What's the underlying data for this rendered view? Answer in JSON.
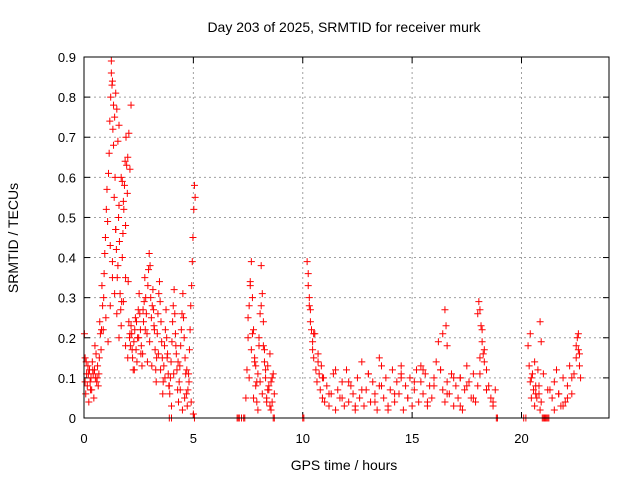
{
  "chart_data": {
    "type": "scatter",
    "title": "Day 203 of 2025, SRMTID for receiver murk",
    "xlabel": "GPS time / hours",
    "ylabel": "SRMTID / TECUs",
    "xlim": [
      0,
      24
    ],
    "ylim": [
      0,
      0.9
    ],
    "xticks": [
      "0",
      "5",
      "10",
      "15",
      "20"
    ],
    "yticks": [
      "0",
      "0.1",
      "0.2",
      "0.3",
      "0.4",
      "0.5",
      "0.6",
      "0.7",
      "0.8",
      "0.9"
    ],
    "grid": true,
    "marker": "+",
    "color": "#ff0000",
    "series": [
      {
        "x": [
          0.02,
          0.05,
          0.08,
          0.12,
          0.15,
          0.18,
          0.22,
          0.25,
          0.28,
          0.32,
          0.35,
          0.38,
          0.42,
          0.45,
          0.48,
          0.52,
          0.55,
          0.58,
          0.62,
          0.65,
          0.68,
          0.72,
          0.75,
          0.78,
          0.82,
          0.85,
          0.88,
          0.92,
          0.95,
          0.98,
          1.02,
          1.05,
          1.08,
          1.12,
          1.15,
          1.18,
          1.22,
          1.25,
          1.28,
          1.32,
          1.35,
          1.38,
          1.42,
          1.45,
          1.48,
          1.52,
          1.55,
          1.58,
          1.62,
          1.65,
          1.68,
          1.72,
          1.75,
          1.78,
          1.82,
          1.85,
          1.88,
          1.92,
          1.95,
          1.98,
          2.02,
          2.05,
          2.08,
          2.12,
          2.15,
          2.18,
          2.22,
          2.25,
          2.28,
          2.32,
          2.35,
          2.38,
          2.42,
          2.45,
          2.48,
          2.52,
          2.55,
          2.58,
          2.62,
          2.65,
          2.68,
          2.72,
          2.75,
          2.78,
          2.82,
          2.85,
          2.88,
          2.92,
          2.95,
          2.98,
          3.02,
          3.05,
          3.08,
          3.12,
          3.15,
          3.18,
          3.22,
          3.25,
          3.28,
          3.32,
          3.35,
          3.38,
          3.42,
          3.45,
          3.48,
          3.52,
          3.55,
          3.58,
          3.62,
          3.65,
          3.68,
          3.72,
          3.75,
          3.78,
          3.82,
          3.85,
          3.88,
          3.92,
          3.95,
          3.98,
          4.02,
          4.05,
          4.08,
          4.12,
          4.15,
          4.18,
          4.22,
          4.25,
          4.28,
          4.32,
          4.35,
          4.38,
          4.42,
          4.45,
          4.48,
          4.52,
          4.55,
          4.58,
          4.62,
          4.65,
          4.68,
          4.72,
          4.75,
          4.78,
          4.82,
          4.85,
          4.88,
          4.92,
          4.95,
          4.98,
          5.02,
          5.05,
          5.08,
          0.05,
          0.1,
          0.2,
          0.3,
          0.4,
          0.5,
          0.6,
          0.7,
          0.8,
          0.9,
          1.0,
          1.1,
          1.2,
          1.3,
          1.4,
          1.5,
          1.6,
          1.7,
          1.8,
          1.9,
          2.0,
          2.1,
          2.2,
          2.3,
          2.4,
          2.5,
          2.6,
          2.7,
          2.8,
          2.9,
          3.0,
          3.1,
          3.2,
          3.3,
          3.4,
          3.5,
          3.6,
          3.7,
          3.8,
          3.9,
          4.0,
          4.1,
          4.2,
          4.3,
          4.4,
          4.5,
          4.6,
          4.7,
          4.8,
          4.9,
          5.0,
          1.25,
          1.3,
          1.35,
          1.4,
          1.45,
          1.5,
          1.55,
          1.6,
          1.7,
          1.8,
          1.9,
          2.0,
          2.1,
          1.2,
          1.3,
          1.45,
          1.6,
          1.75,
          1.9,
          2.05,
          2.15,
          7.4,
          7.45,
          7.5,
          7.55,
          7.6,
          7.65,
          7.7,
          7.75,
          7.8,
          7.85,
          7.9,
          7.95,
          8.0,
          8.05,
          8.1,
          8.15,
          8.2,
          8.25,
          8.3,
          8.35,
          8.4,
          8.45,
          8.5,
          8.55,
          8.6,
          8.65,
          8.7,
          7.5,
          7.6,
          7.7,
          7.8,
          7.9,
          8.0,
          8.1,
          8.2,
          8.3,
          8.4,
          8.5,
          8.6,
          7.55,
          7.65,
          7.75,
          7.85,
          7.95,
          8.05,
          8.15,
          8.25,
          8.35,
          8.45,
          8.55,
          10.2,
          10.25,
          10.3,
          10.35,
          10.4,
          10.45,
          10.5,
          10.55,
          10.6,
          10.65,
          10.7,
          10.75,
          10.8,
          10.85,
          10.9,
          10.95,
          11.0,
          11.1,
          11.2,
          11.3,
          11.4,
          11.5,
          11.6,
          11.7,
          11.8,
          11.9,
          12.0,
          12.1,
          12.2,
          12.3,
          12.4,
          12.5,
          12.6,
          12.7,
          12.8,
          12.9,
          13.0,
          13.1,
          13.2,
          13.3,
          13.4,
          13.5,
          13.6,
          13.7,
          13.8,
          13.9,
          14.0,
          14.1,
          14.2,
          14.3,
          14.4,
          14.5,
          14.6,
          14.7,
          14.8,
          14.9,
          15.0,
          15.1,
          15.2,
          15.3,
          15.4,
          15.5,
          15.6,
          15.7,
          15.8,
          15.9,
          16.0,
          16.1,
          16.2,
          16.3,
          16.4,
          16.5,
          16.6,
          16.7,
          16.8,
          16.9,
          17.0,
          17.1,
          17.2,
          17.3,
          17.4,
          17.5,
          17.6,
          17.7,
          17.8,
          17.9,
          18.0,
          18.1,
          18.2,
          18.3,
          18.4,
          18.5,
          18.6,
          18.7,
          18.8,
          10.3,
          10.5,
          10.7,
          10.9,
          11.2,
          11.5,
          11.8,
          12.1,
          12.4,
          12.7,
          13.0,
          13.3,
          13.6,
          13.9,
          14.2,
          14.5,
          14.8,
          15.1,
          15.4,
          15.7,
          16.0,
          16.3,
          16.6,
          16.9,
          17.2,
          17.5,
          17.8,
          18.1,
          18.4,
          18.7,
          10.25,
          10.35,
          10.45,
          13.5,
          14.5,
          15.5,
          16.4,
          16.5,
          16.55,
          16.6,
          17.2,
          18.0,
          18.05,
          18.1,
          18.15,
          18.2,
          18.25,
          18.3,
          18.4,
          20.3,
          20.35,
          20.4,
          20.45,
          20.5,
          20.55,
          20.6,
          20.65,
          20.7,
          20.75,
          20.8,
          20.85,
          20.9,
          21.3,
          21.4,
          21.5,
          21.6,
          21.7,
          21.8,
          21.9,
          22.0,
          22.1,
          22.2,
          22.3,
          22.4,
          22.5,
          22.6,
          22.65,
          22.7,
          20.4,
          20.6,
          20.8,
          21.5,
          21.7,
          21.9,
          22.1,
          22.3,
          22.5,
          20.45,
          20.65,
          20.85,
          20.9,
          21.0,
          21.2,
          22.55,
          22.6,
          22.65
        ],
        "y": [
          0.21,
          0.15,
          0.06,
          0.11,
          0.08,
          0.13,
          0.04,
          0.12,
          0.09,
          0.1,
          0.07,
          0.14,
          0.11,
          0.05,
          0.12,
          0.1,
          0.16,
          0.09,
          0.13,
          0.08,
          0.11,
          0.24,
          0.21,
          0.17,
          0.33,
          0.28,
          0.22,
          0.36,
          0.41,
          0.45,
          0.52,
          0.57,
          0.49,
          0.61,
          0.66,
          0.74,
          0.8,
          0.86,
          0.83,
          0.72,
          0.68,
          0.55,
          0.6,
          0.47,
          0.42,
          0.35,
          0.38,
          0.5,
          0.44,
          0.31,
          0.27,
          0.29,
          0.4,
          0.46,
          0.52,
          0.58,
          0.64,
          0.7,
          0.63,
          0.56,
          0.34,
          0.24,
          0.2,
          0.18,
          0.23,
          0.21,
          0.15,
          0.12,
          0.19,
          0.22,
          0.25,
          0.17,
          0.14,
          0.2,
          0.27,
          0.31,
          0.26,
          0.22,
          0.18,
          0.13,
          0.16,
          0.24,
          0.29,
          0.35,
          0.3,
          0.26,
          0.21,
          0.33,
          0.37,
          0.41,
          0.38,
          0.3,
          0.25,
          0.28,
          0.32,
          0.27,
          0.22,
          0.17,
          0.12,
          0.15,
          0.21,
          0.26,
          0.31,
          0.34,
          0.29,
          0.24,
          0.19,
          0.15,
          0.09,
          0.13,
          0.18,
          0.22,
          0.27,
          0.2,
          0.16,
          0.11,
          0.08,
          0.06,
          0.1,
          0.14,
          0.19,
          0.24,
          0.28,
          0.32,
          0.26,
          0.21,
          0.16,
          0.12,
          0.07,
          0.04,
          0.09,
          0.13,
          0.18,
          0.22,
          0.26,
          0.31,
          0.25,
          0.2,
          0.15,
          0.11,
          0.06,
          0.03,
          0.07,
          0.11,
          0.17,
          0.22,
          0.28,
          0.33,
          0.39,
          0.45,
          0.52,
          0.58,
          0.55,
          0.09,
          0.14,
          0.11,
          0.07,
          0.12,
          0.18,
          0.1,
          0.15,
          0.22,
          0.3,
          0.25,
          0.19,
          0.28,
          0.35,
          0.31,
          0.26,
          0.2,
          0.23,
          0.29,
          0.18,
          0.15,
          0.21,
          0.17,
          0.12,
          0.24,
          0.2,
          0.16,
          0.27,
          0.22,
          0.14,
          0.19,
          0.13,
          0.23,
          0.09,
          0.16,
          0.12,
          0.06,
          0.1,
          0.15,
          0.08,
          0.03,
          0.11,
          0.18,
          0.14,
          0.07,
          0.02,
          0.05,
          0.12,
          0.09,
          0.04,
          0.01,
          0.89,
          0.84,
          0.78,
          0.75,
          0.81,
          0.77,
          0.69,
          0.73,
          0.6,
          0.54,
          0.48,
          0.65,
          0.62,
          0.43,
          0.39,
          0.47,
          0.53,
          0.59,
          0.35,
          0.71,
          0.78,
          0.05,
          0.12,
          0.2,
          0.28,
          0.34,
          0.39,
          0.3,
          0.22,
          0.15,
          0.08,
          0.04,
          0.11,
          0.18,
          0.26,
          0.38,
          0.31,
          0.24,
          0.17,
          0.1,
          0.05,
          0.13,
          0.07,
          0.16,
          0.09,
          0.04,
          0.11,
          0.06,
          0.25,
          0.33,
          0.21,
          0.14,
          0.09,
          0.2,
          0.28,
          0.18,
          0.12,
          0.07,
          0.03,
          0.1,
          0.1,
          0.17,
          0.05,
          0.13,
          0.02,
          0.09,
          0.06,
          0.14,
          0.04,
          0.08,
          0.02,
          0.39,
          0.36,
          0.3,
          0.27,
          0.22,
          0.19,
          0.15,
          0.21,
          0.12,
          0.09,
          0.16,
          0.11,
          0.07,
          0.13,
          0.05,
          0.1,
          0.04,
          0.08,
          0.03,
          0.06,
          0.11,
          0.02,
          0.07,
          0.05,
          0.09,
          0.03,
          0.12,
          0.04,
          0.08,
          0.06,
          0.02,
          0.1,
          0.05,
          0.14,
          0.03,
          0.07,
          0.11,
          0.04,
          0.09,
          0.06,
          0.02,
          0.08,
          0.13,
          0.05,
          0.1,
          0.03,
          0.07,
          0.12,
          0.04,
          0.09,
          0.06,
          0.11,
          0.02,
          0.08,
          0.05,
          0.1,
          0.03,
          0.07,
          0.12,
          0.04,
          0.09,
          0.06,
          0.11,
          0.03,
          0.08,
          0.05,
          0.1,
          0.14,
          0.19,
          0.12,
          0.07,
          0.04,
          0.09,
          0.06,
          0.11,
          0.03,
          0.08,
          0.05,
          0.1,
          0.02,
          0.07,
          0.13,
          0.09,
          0.05,
          0.11,
          0.04,
          0.08,
          0.15,
          0.22,
          0.17,
          0.12,
          0.08,
          0.05,
          0.03,
          0.07,
          0.28,
          0.21,
          0.14,
          0.1,
          0.06,
          0.12,
          0.05,
          0.09,
          0.03,
          0.07,
          0.11,
          0.04,
          0.08,
          0.02,
          0.06,
          0.1,
          0.05,
          0.09,
          0.13,
          0.04,
          0.08,
          0.12,
          0.06,
          0.1,
          0.03,
          0.08,
          0.05,
          0.11,
          0.07,
          0.04,
          0.33,
          0.24,
          0.17,
          0.15,
          0.13,
          0.12,
          0.21,
          0.27,
          0.23,
          0.18,
          0.1,
          0.26,
          0.29,
          0.27,
          0.23,
          0.19,
          0.16,
          0.14,
          0.07,
          0.18,
          0.13,
          0.09,
          0.05,
          0.11,
          0.07,
          0.03,
          0.08,
          0.05,
          0.12,
          0.06,
          0.02,
          0.04,
          0.07,
          0.05,
          0.09,
          0.12,
          0.06,
          0.03,
          0.1,
          0.04,
          0.08,
          0.13,
          0.06,
          0.11,
          0.18,
          0.21,
          0.16,
          0.1,
          0.21,
          0.14,
          0.08,
          0.02,
          0.06,
          0.03,
          0.05,
          0.1,
          0.15,
          0.1,
          0.06,
          0.24,
          0.19,
          0.11,
          0.07,
          0.2,
          0.17,
          0.13
        ]
      }
    ],
    "zero_markers_x": [
      3.9,
      4.0,
      5.05,
      7.0,
      7.05,
      7.1,
      7.2,
      7.3,
      7.35,
      8.65,
      8.7,
      10.0,
      10.05,
      18.85,
      18.9,
      20.1,
      20.2,
      20.95,
      21.0,
      21.05,
      21.1,
      21.15,
      21.2,
      21.25
    ]
  }
}
